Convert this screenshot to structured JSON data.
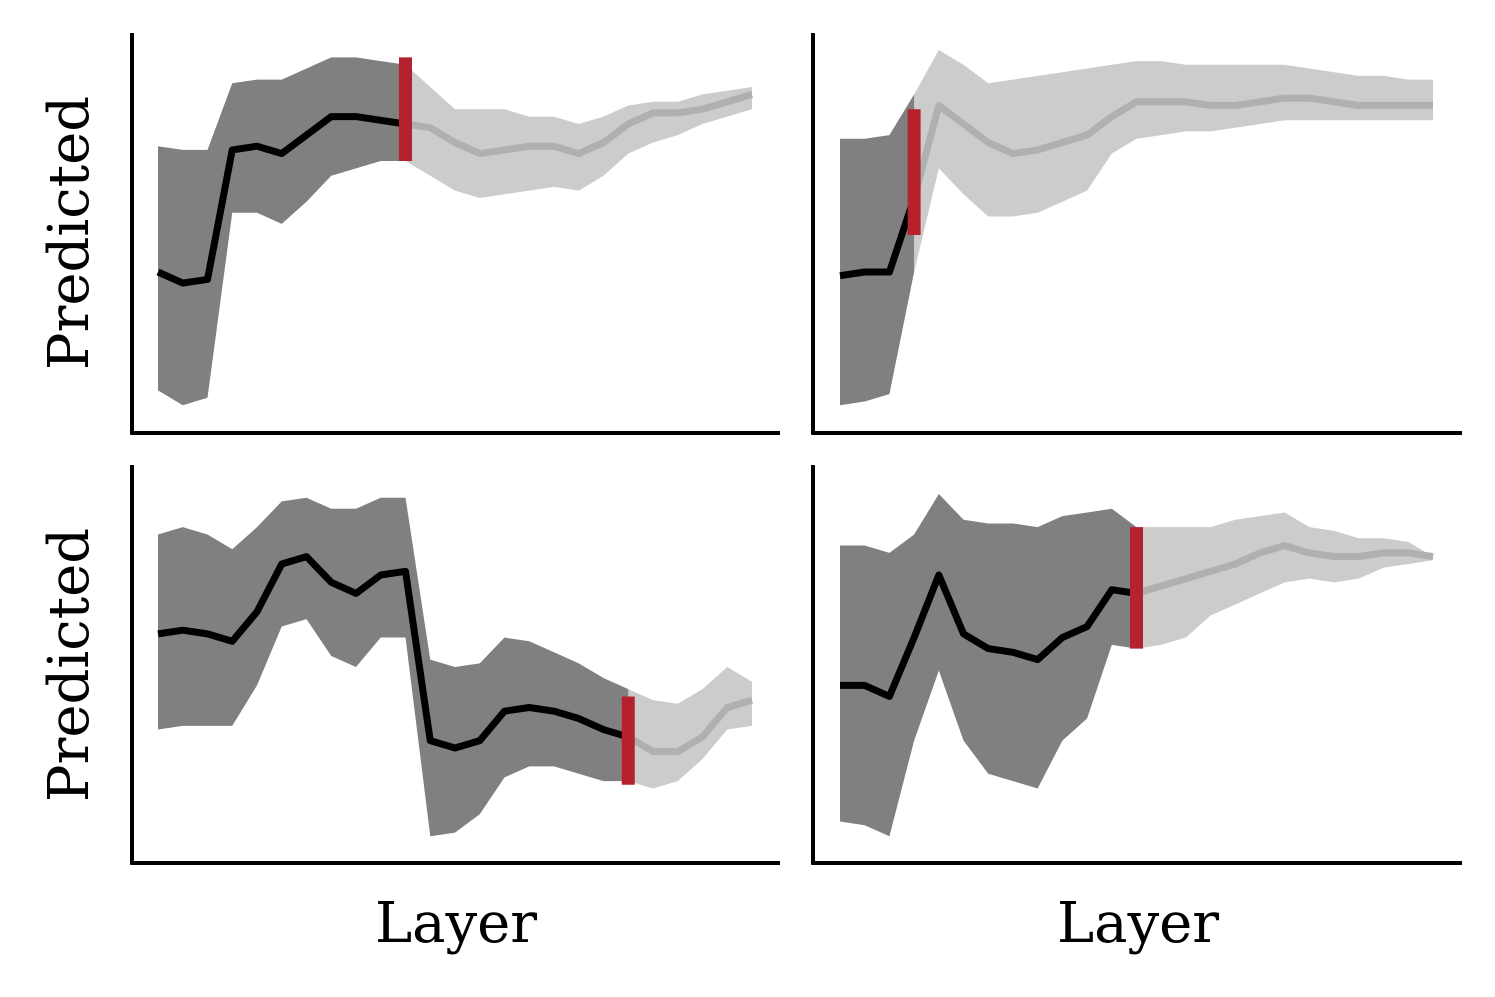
{
  "chart_data": [
    {
      "type": "line",
      "position": "top-left",
      "xlabel": "",
      "ylabel": "Predicted",
      "xlim": [
        0,
        24
      ],
      "ylim": [
        0,
        1
      ],
      "grid": false,
      "x": [
        0,
        1,
        2,
        3,
        4,
        5,
        6,
        7,
        8,
        9,
        10,
        11,
        12,
        13,
        14,
        15,
        16,
        17,
        18,
        19,
        20,
        21,
        22,
        23,
        24
      ],
      "mean": [
        0.4,
        0.37,
        0.38,
        0.73,
        0.74,
        0.72,
        0.77,
        0.82,
        0.82,
        0.81,
        0.8,
        0.79,
        0.75,
        0.72,
        0.73,
        0.74,
        0.74,
        0.72,
        0.75,
        0.8,
        0.83,
        0.83,
        0.84,
        0.86,
        0.88
      ],
      "upper": [
        0.74,
        0.73,
        0.73,
        0.91,
        0.92,
        0.92,
        0.95,
        0.98,
        0.98,
        0.97,
        0.96,
        0.9,
        0.84,
        0.84,
        0.84,
        0.82,
        0.82,
        0.8,
        0.82,
        0.85,
        0.86,
        0.86,
        0.88,
        0.89,
        0.9
      ],
      "lower": [
        0.08,
        0.04,
        0.06,
        0.56,
        0.56,
        0.53,
        0.59,
        0.66,
        0.68,
        0.7,
        0.7,
        0.66,
        0.62,
        0.6,
        0.61,
        0.62,
        0.63,
        0.62,
        0.66,
        0.72,
        0.75,
        0.77,
        0.8,
        0.82,
        0.84
      ],
      "cutoff": 10,
      "cutoff_range": [
        0.7,
        0.98
      ],
      "colors": {
        "mean_before": "#000000",
        "band_before": "#808080",
        "mean_after": "#b0b0b0",
        "band_after": "#cccccc",
        "cutoff": "#b5222d"
      }
    },
    {
      "type": "line",
      "position": "top-right",
      "xlabel": "",
      "ylabel": "",
      "xlim": [
        0,
        24
      ],
      "ylim": [
        0,
        1
      ],
      "grid": false,
      "x": [
        0,
        1,
        2,
        3,
        4,
        5,
        6,
        7,
        8,
        9,
        10,
        11,
        12,
        13,
        14,
        15,
        16,
        17,
        18,
        19,
        20,
        21,
        22,
        23,
        24
      ],
      "mean": [
        0.39,
        0.4,
        0.4,
        0.6,
        0.85,
        0.8,
        0.75,
        0.72,
        0.73,
        0.75,
        0.77,
        0.82,
        0.86,
        0.86,
        0.86,
        0.85,
        0.85,
        0.86,
        0.87,
        0.87,
        0.86,
        0.85,
        0.85,
        0.85,
        0.85
      ],
      "upper": [
        0.76,
        0.76,
        0.77,
        0.88,
        1.0,
        0.96,
        0.91,
        0.92,
        0.93,
        0.94,
        0.95,
        0.96,
        0.97,
        0.97,
        0.96,
        0.96,
        0.96,
        0.96,
        0.96,
        0.95,
        0.94,
        0.93,
        0.93,
        0.92,
        0.92
      ],
      "lower": [
        0.04,
        0.05,
        0.07,
        0.4,
        0.68,
        0.61,
        0.55,
        0.55,
        0.56,
        0.59,
        0.62,
        0.72,
        0.76,
        0.77,
        0.78,
        0.78,
        0.79,
        0.8,
        0.81,
        0.81,
        0.81,
        0.81,
        0.81,
        0.81,
        0.81
      ],
      "cutoff": 3,
      "cutoff_range": [
        0.5,
        0.84
      ],
      "colors": {
        "mean_before": "#000000",
        "band_before": "#808080",
        "mean_after": "#b0b0b0",
        "band_after": "#cccccc",
        "cutoff": "#b5222d"
      }
    },
    {
      "type": "line",
      "position": "bottom-left",
      "xlabel": "Layer",
      "ylabel": "Predicted",
      "xlim": [
        0,
        24
      ],
      "ylim": [
        0,
        1
      ],
      "grid": false,
      "x": [
        0,
        1,
        2,
        3,
        4,
        5,
        6,
        7,
        8,
        9,
        10,
        11,
        12,
        13,
        14,
        15,
        16,
        17,
        18,
        19,
        20,
        21,
        22,
        23,
        24
      ],
      "mean": [
        0.59,
        0.6,
        0.59,
        0.57,
        0.65,
        0.78,
        0.8,
        0.73,
        0.7,
        0.75,
        0.76,
        0.3,
        0.28,
        0.3,
        0.38,
        0.39,
        0.38,
        0.36,
        0.33,
        0.31,
        0.27,
        0.27,
        0.31,
        0.39,
        0.41
      ],
      "upper": [
        0.86,
        0.88,
        0.86,
        0.82,
        0.88,
        0.95,
        0.96,
        0.93,
        0.93,
        0.96,
        0.96,
        0.52,
        0.5,
        0.51,
        0.58,
        0.57,
        0.54,
        0.51,
        0.47,
        0.44,
        0.41,
        0.4,
        0.44,
        0.5,
        0.46
      ],
      "lower": [
        0.33,
        0.34,
        0.34,
        0.34,
        0.45,
        0.61,
        0.63,
        0.53,
        0.5,
        0.58,
        0.58,
        0.04,
        0.05,
        0.1,
        0.2,
        0.23,
        0.23,
        0.21,
        0.19,
        0.19,
        0.17,
        0.19,
        0.25,
        0.33,
        0.34
      ],
      "cutoff": 19,
      "cutoff_range": [
        0.18,
        0.42
      ],
      "colors": {
        "mean_before": "#000000",
        "band_before": "#808080",
        "mean_after": "#b0b0b0",
        "band_after": "#cccccc",
        "cutoff": "#b5222d"
      }
    },
    {
      "type": "line",
      "position": "bottom-right",
      "xlabel": "Layer",
      "ylabel": "",
      "xlim": [
        0,
        24
      ],
      "ylim": [
        0,
        1
      ],
      "grid": false,
      "x": [
        0,
        1,
        2,
        3,
        4,
        5,
        6,
        7,
        8,
        9,
        10,
        11,
        12,
        13,
        14,
        15,
        16,
        17,
        18,
        19,
        20,
        21,
        22,
        23,
        24
      ],
      "mean": [
        0.45,
        0.45,
        0.42,
        0.58,
        0.75,
        0.59,
        0.55,
        0.54,
        0.52,
        0.58,
        0.61,
        0.71,
        0.7,
        0.72,
        0.74,
        0.76,
        0.78,
        0.81,
        0.83,
        0.81,
        0.8,
        0.8,
        0.81,
        0.81,
        0.8
      ],
      "upper": [
        0.83,
        0.83,
        0.81,
        0.86,
        0.97,
        0.9,
        0.89,
        0.89,
        0.88,
        0.91,
        0.92,
        0.93,
        0.88,
        0.88,
        0.88,
        0.88,
        0.9,
        0.91,
        0.92,
        0.88,
        0.87,
        0.85,
        0.85,
        0.84,
        0.8
      ],
      "lower": [
        0.08,
        0.07,
        0.04,
        0.3,
        0.49,
        0.3,
        0.21,
        0.19,
        0.17,
        0.3,
        0.36,
        0.56,
        0.55,
        0.56,
        0.58,
        0.64,
        0.67,
        0.7,
        0.73,
        0.74,
        0.73,
        0.74,
        0.77,
        0.78,
        0.79
      ],
      "cutoff": 12,
      "cutoff_range": [
        0.55,
        0.88
      ],
      "colors": {
        "mean_before": "#000000",
        "band_before": "#808080",
        "mean_after": "#b0b0b0",
        "band_after": "#cccccc",
        "cutoff": "#b5222d"
      }
    }
  ]
}
